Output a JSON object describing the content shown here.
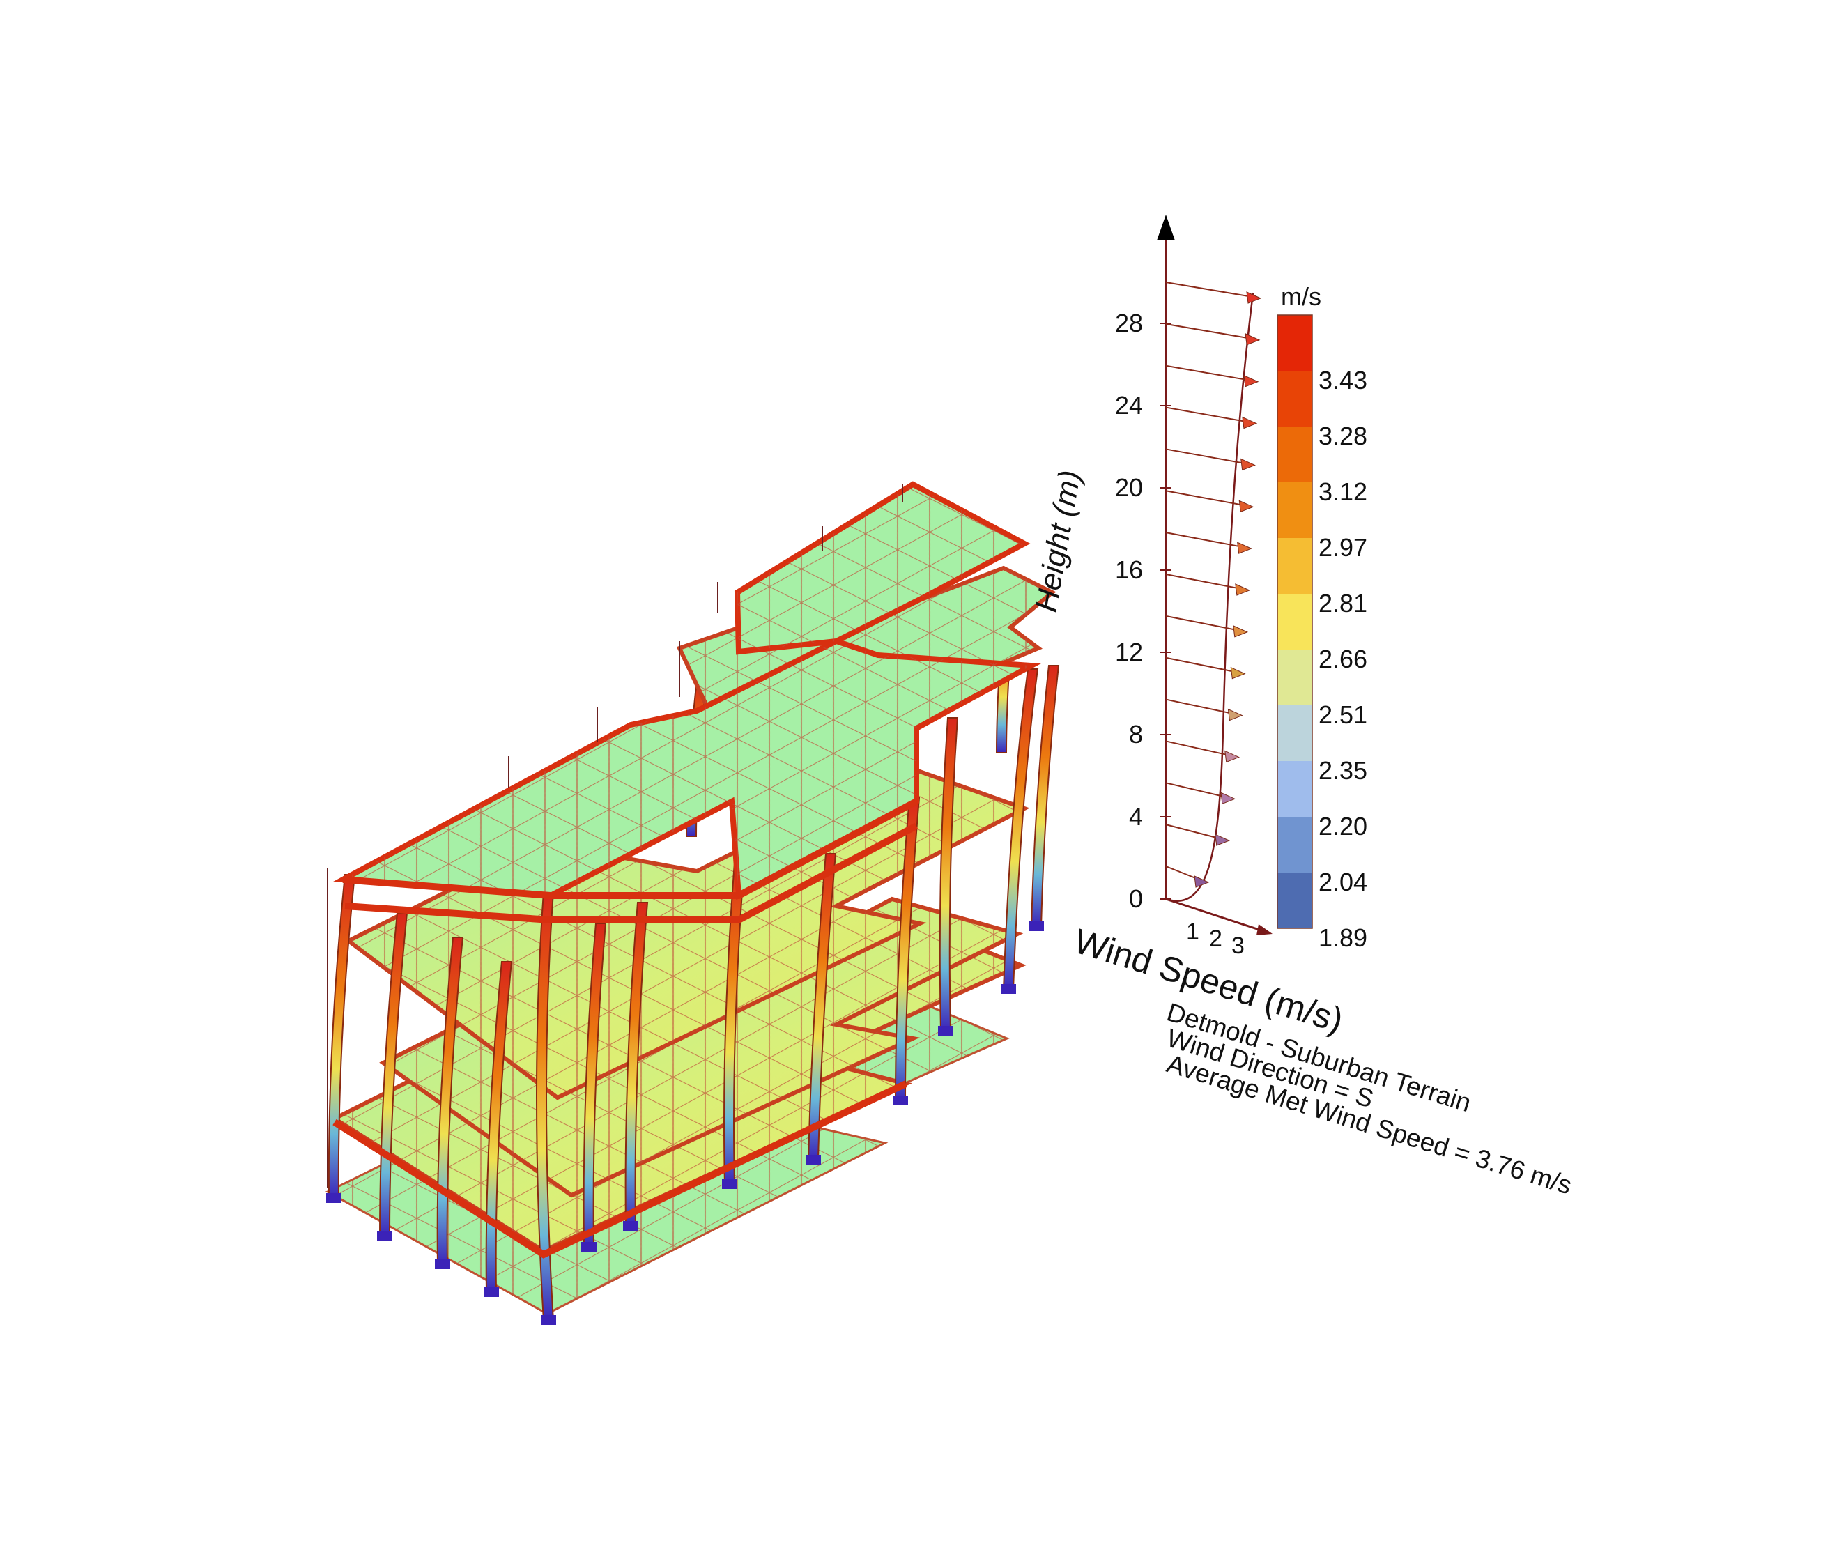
{
  "legend": {
    "unit": "m/s",
    "ticks": [
      "3.43",
      "3.28",
      "3.12",
      "2.97",
      "2.81",
      "2.66",
      "2.51",
      "2.35",
      "2.20",
      "2.04",
      "1.89"
    ],
    "colors": [
      "#e42606",
      "#e84406",
      "#ec6a08",
      "#f08f12",
      "#f5bd33",
      "#f8e45a",
      "#e0e894",
      "#bcd4dc",
      "#9fbcec",
      "#7094d0",
      "#4e6cb1"
    ]
  },
  "profile": {
    "y_axis_label": "Height (m)",
    "y_ticks": [
      "0",
      "4",
      "8",
      "12",
      "16",
      "20",
      "24",
      "28"
    ],
    "x_axis_label": "Wind Speed (m/s)",
    "x_ticks": [
      "1",
      "2",
      "3"
    ]
  },
  "info": {
    "line1": "Detmold - Suburban Terrain",
    "line2": "Wind Direction = S",
    "line3": "Average Met Wind Speed = 3.76 m/s"
  },
  "colors": {
    "slab": "#a6f0a6",
    "slab_warm": "#eef070",
    "beam": "#d9401f",
    "grid": "#c05030",
    "column_base": "#3b22b8",
    "profile_curve": "#7a1a1a"
  }
}
